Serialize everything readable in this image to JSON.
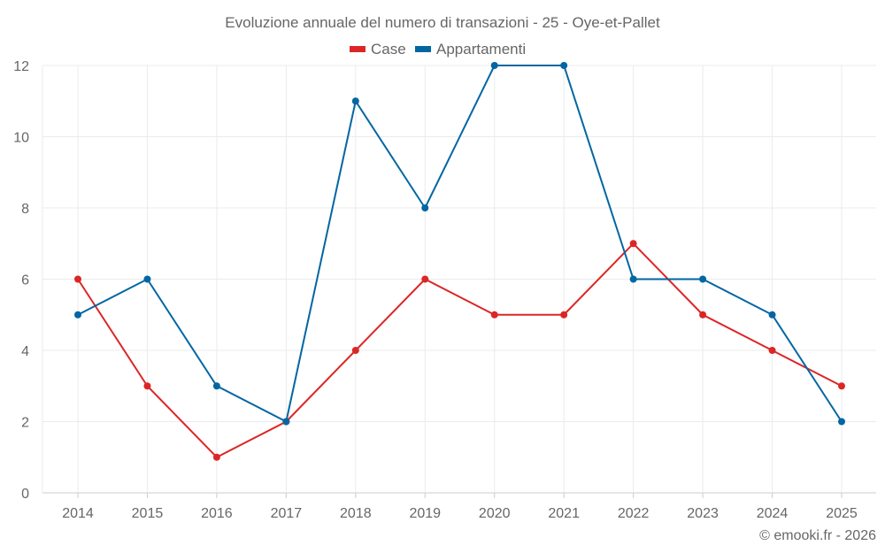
{
  "chart_data": {
    "type": "line",
    "title": "Evoluzione annuale del numero di transazioni - 25 - Oye-et-Pallet",
    "categories": [
      "2014",
      "2015",
      "2016",
      "2017",
      "2018",
      "2019",
      "2020",
      "2021",
      "2022",
      "2023",
      "2024",
      "2025"
    ],
    "series": [
      {
        "name": "Case",
        "color": "#dc2626",
        "values": [
          6,
          3,
          1,
          2,
          4,
          6,
          5,
          5,
          7,
          5,
          4,
          3
        ]
      },
      {
        "name": "Appartamenti",
        "color": "#0266a3",
        "values": [
          5,
          6,
          3,
          2,
          11,
          8,
          12,
          12,
          6,
          6,
          5,
          2
        ]
      }
    ],
    "ylim": [
      0,
      12
    ],
    "yticks": [
      0,
      2,
      4,
      6,
      8,
      10,
      12
    ],
    "grid": true,
    "legend": "top-center",
    "xlabel": "",
    "ylabel": ""
  },
  "credit": "© emooki.fr - 2026"
}
